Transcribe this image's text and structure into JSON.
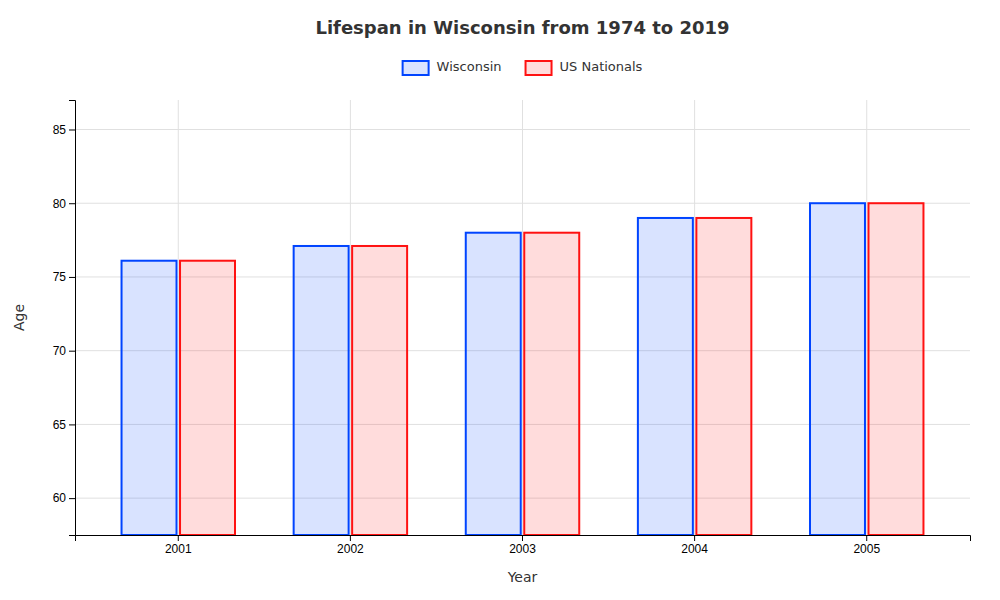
{
  "chart_data": {
    "type": "bar",
    "title": "Lifespan in Wisconsin from 1974 to 2019",
    "xlabel": "Year",
    "ylabel": "Age",
    "categories": [
      "2001",
      "2002",
      "2003",
      "2004",
      "2005"
    ],
    "series": [
      {
        "name": "Wisconsin",
        "color": "#0044ff",
        "values": [
          76.1,
          77.1,
          78.0,
          79.0,
          80.0
        ]
      },
      {
        "name": "US Nationals",
        "color": "#ff1111",
        "values": [
          76.1,
          77.1,
          78.0,
          79.0,
          80.0
        ]
      }
    ],
    "ylim": [
      57.5,
      87
    ],
    "yticks": [
      60,
      65,
      70,
      75,
      80,
      85
    ],
    "grid": true,
    "legend": "top"
  }
}
